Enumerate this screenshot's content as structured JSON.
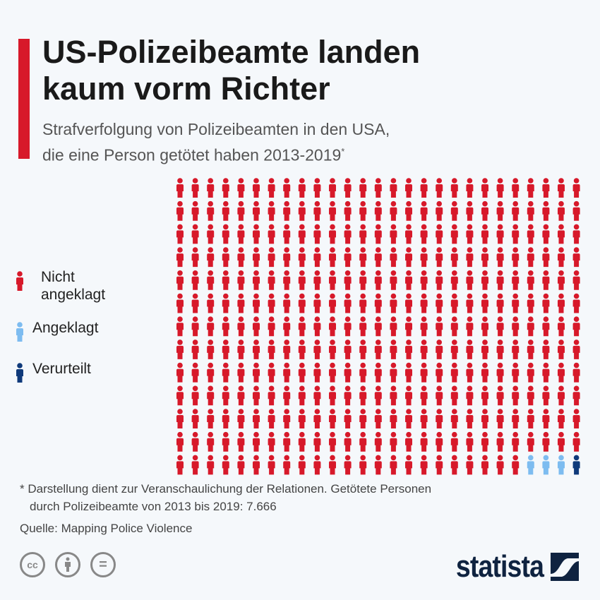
{
  "header": {
    "title_line1": "US-Polizeibeamte landen",
    "title_line2": "kaum vorm Richter",
    "subtitle_line1": "Strafverfolgung von Polizeibeamten in den USA,",
    "subtitle_line2": "die eine Person getötet haben 2013-2019",
    "subtitle_mark": "*"
  },
  "chart_data": {
    "type": "pictogram",
    "columns": 27,
    "rows": 13,
    "series": [
      {
        "name": "Nicht angeklagt",
        "icons": 347,
        "color": "#d7192a"
      },
      {
        "name": "Angeklagt",
        "icons": 3,
        "color": "#7dbcf0"
      },
      {
        "name": "Verurteilt",
        "icons": 1,
        "color": "#0f3a7a"
      }
    ],
    "legend_placement": "left"
  },
  "legend": {
    "item1_line1": "Nicht",
    "item1_line2": "angeklagt",
    "item2": "Angeklagt",
    "item3": "Verurteilt"
  },
  "footer": {
    "note_line1": "* Darstellung dient zur Veranschaulichung der Relationen. Getötete Personen",
    "note_line2": "durch Polizeibeamte von 2013 bis 2019: 7.666",
    "source": "Quelle: Mapping Police Violence",
    "cc": "cc",
    "equals": "=",
    "brand": "statista"
  }
}
